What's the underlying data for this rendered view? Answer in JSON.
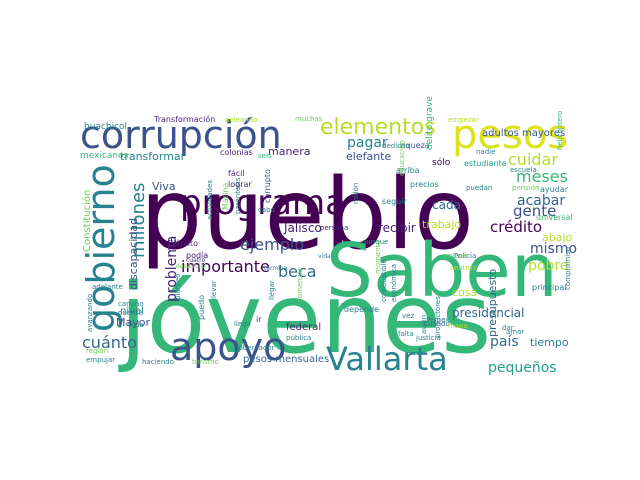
{
  "palette": {
    "dark_purple": "#440154",
    "purple": "#482677",
    "indigo": "#3b528b",
    "blue": "#31688e",
    "teal": "#26828e",
    "teal_green": "#1f9e89",
    "green": "#35b779",
    "light_green": "#6ece58",
    "yellow_green": "#b5de2b",
    "yellow": "#dce319"
  },
  "words": [
    {
      "id": "pueblo",
      "text": "pueblo"
    },
    {
      "id": "jovenes",
      "text": "jóvenes"
    },
    {
      "id": "saben",
      "text": "Saben"
    },
    {
      "id": "corrupcion",
      "text": "corrupción"
    },
    {
      "id": "pesos",
      "text": "pesos"
    },
    {
      "id": "programa",
      "text": "programa"
    },
    {
      "id": "gobierno",
      "text": "gobierno"
    },
    {
      "id": "apoyo",
      "text": "apoyo"
    },
    {
      "id": "vallarta",
      "text": "Vallarta"
    },
    {
      "id": "elementos",
      "text": "elementos"
    },
    {
      "id": "millones",
      "text": "millones"
    },
    {
      "id": "ejemplo",
      "text": "ejemplo"
    },
    {
      "id": "importante",
      "text": "importante"
    },
    {
      "id": "beca",
      "text": "beca"
    },
    {
      "id": "cuanto",
      "text": "cuánto"
    },
    {
      "id": "pais",
      "text": "país"
    },
    {
      "id": "pequenos",
      "text": "pequeños"
    },
    {
      "id": "cuidar",
      "text": "cuidar"
    },
    {
      "id": "meses",
      "text": "meses"
    },
    {
      "id": "gente",
      "text": "gente"
    },
    {
      "id": "acabar",
      "text": "acabar"
    },
    {
      "id": "credito",
      "text": "crédito"
    },
    {
      "id": "mismo",
      "text": "mismo"
    },
    {
      "id": "pobre",
      "text": "pobre"
    },
    {
      "id": "pagar",
      "text": "pagar"
    },
    {
      "id": "problema",
      "text": "problema"
    },
    {
      "id": "presidencial",
      "text": "presidencial"
    },
    {
      "id": "tiempo",
      "text": "tiempo"
    },
    {
      "id": "jalisco",
      "text": "Jalisco"
    },
    {
      "id": "recibir",
      "text": "recibir"
    },
    {
      "id": "cada",
      "text": "cada"
    },
    {
      "id": "transformar",
      "text": "transformar"
    },
    {
      "id": "manera",
      "text": "manera"
    },
    {
      "id": "elefante",
      "text": "elefante"
    },
    {
      "id": "trabajo",
      "text": "trabajo"
    },
    {
      "id": "discapacidad",
      "text": "discapacidad"
    },
    {
      "id": "viva",
      "text": "Viva"
    },
    {
      "id": "mayor",
      "text": "Mayor"
    },
    {
      "id": "abajo",
      "text": "abajo"
    },
    {
      "id": "cosa",
      "text": "cosa"
    },
    {
      "id": "presupuesto",
      "text": "presupuesto"
    },
    {
      "id": "pesos_mensuales",
      "text": "pesos mensuales"
    },
    {
      "id": "federal",
      "text": "federal"
    },
    {
      "id": "nivel",
      "text": "nivel"
    },
    {
      "id": "adultos_mayores",
      "text": "adultos mayores"
    },
    {
      "id": "constitucion",
      "text": "Constitución"
    },
    {
      "id": "mexicanos",
      "text": "mexicanos"
    },
    {
      "id": "huachicol",
      "text": "huachicol"
    },
    {
      "id": "transformacion",
      "text": "Transformación"
    },
    {
      "id": "peleando",
      "text": "peleando"
    },
    {
      "id": "muchas",
      "text": "muchas"
    },
    {
      "id": "empezar",
      "text": "empezar"
    },
    {
      "id": "helicoptero",
      "text": "helicóptero"
    },
    {
      "id": "colonias",
      "text": "colonias"
    },
    {
      "id": "seis",
      "text": "seis"
    },
    {
      "id": "facil",
      "text": "fácil"
    },
    {
      "id": "lograr",
      "text": "lograr"
    },
    {
      "id": "corrupto",
      "text": "corrupto"
    },
    {
      "id": "riqueza",
      "text": "riqueza"
    },
    {
      "id": "arriba",
      "text": "arriba"
    },
    {
      "id": "dedican",
      "text": "dedican"
    },
    {
      "id": "solo",
      "text": "sólo"
    },
    {
      "id": "nadie",
      "text": "nadie"
    },
    {
      "id": "escuela",
      "text": "escuela"
    },
    {
      "id": "estudiante",
      "text": "estudiante"
    },
    {
      "id": "ayudar",
      "text": "ayudar"
    },
    {
      "id": "pension",
      "text": "pensión"
    },
    {
      "id": "puedan",
      "text": "puedan"
    },
    {
      "id": "precios",
      "text": "precios"
    },
    {
      "id": "seguir",
      "text": "seguir"
    },
    {
      "id": "delito_grave",
      "text": "delito grave"
    },
    {
      "id": "millon",
      "text": "millón"
    },
    {
      "id": "marina",
      "text": "Marina"
    },
    {
      "id": "actividades",
      "text": "actividades"
    },
    {
      "id": "parentesis",
      "text": "paréntesis"
    },
    {
      "id": "cabo",
      "text": "cabo"
    },
    {
      "id": "ejercito",
      "text": "Ejército"
    },
    {
      "id": "podia",
      "text": "podía"
    },
    {
      "id": "cuatro",
      "text": "cuatro"
    },
    {
      "id": "desarrollo",
      "text": "desarrollo"
    },
    {
      "id": "termina",
      "text": "termina"
    },
    {
      "id": "vida",
      "text": "vida"
    },
    {
      "id": "persona",
      "text": "persona"
    },
    {
      "id": "aunque",
      "text": "aunque"
    },
    {
      "id": "policia",
      "text": "Policía"
    },
    {
      "id": "universal",
      "text": "universal"
    },
    {
      "id": "principal",
      "text": "principal"
    },
    {
      "id": "compromiso",
      "text": "compromiso"
    },
    {
      "id": "adelante",
      "text": "adelante"
    },
    {
      "id": "camino",
      "text": "camino"
    },
    {
      "id": "puente",
      "text": "puente"
    },
    {
      "id": "toda",
      "text": "toda"
    },
    {
      "id": "region",
      "text": "región"
    },
    {
      "id": "empujar",
      "text": "empujar"
    },
    {
      "id": "haciendo",
      "text": "haciendo"
    },
    {
      "id": "turismo",
      "text": "turismo"
    },
    {
      "id": "gobernador",
      "text": "gobernador"
    },
    {
      "id": "publica",
      "text": "pública"
    },
    {
      "id": "llegar",
      "text": "llegar"
    },
    {
      "id": "planteo",
      "text": "planteó"
    },
    {
      "id": "llevar",
      "text": "llevar"
    },
    {
      "id": "puedo",
      "text": "puedo"
    },
    {
      "id": "llega",
      "text": "llega"
    },
    {
      "id": "ir",
      "text": "ir"
    },
    {
      "id": "avanzando",
      "text": "avanzando"
    },
    {
      "id": "depende",
      "text": "depende"
    },
    {
      "id": "combustible",
      "text": "combustible"
    },
    {
      "id": "economica",
      "text": "económica"
    },
    {
      "id": "vez",
      "text": "vez"
    },
    {
      "id": "pemex",
      "text": "Pemex"
    },
    {
      "id": "avion",
      "text": "avión"
    },
    {
      "id": "cuando",
      "text": "cuándo"
    },
    {
      "id": "falta",
      "text": "falta"
    },
    {
      "id": "justicia",
      "text": "justicia"
    },
    {
      "id": "mano",
      "text": "mano"
    },
    {
      "id": "productores",
      "text": "productores"
    },
    {
      "id": "amor",
      "text": "amor"
    },
    {
      "id": "dar",
      "text": "dar"
    },
    {
      "id": "comenzar",
      "text": "comenzar"
    },
    {
      "id": "educacion",
      "text": "educación"
    },
    {
      "id": "momento",
      "text": "momento"
    },
    {
      "id": "enlace",
      "text": "enlace"
    },
    {
      "id": "centros",
      "text": "centros"
    }
  ]
}
